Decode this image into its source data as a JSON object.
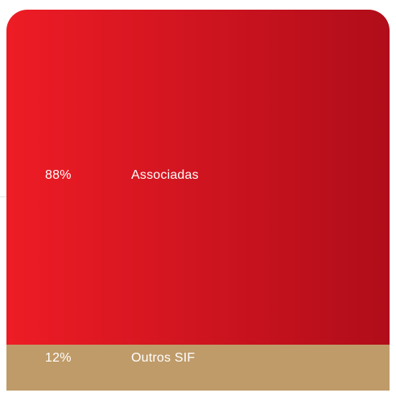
{
  "chart_data": {
    "type": "bar",
    "orientation": "stacked-100-percent",
    "categories": [
      "Associadas",
      "Outros SIF"
    ],
    "values": [
      88,
      12
    ],
    "value_labels": [
      "88%",
      "12%"
    ],
    "unit": "%",
    "title": "",
    "grid": false,
    "legend": "none",
    "colors": {
      "Associadas": [
        "#ee1c25",
        "#b00d1a"
      ],
      "Outros SIF": "#bf9b69"
    }
  }
}
